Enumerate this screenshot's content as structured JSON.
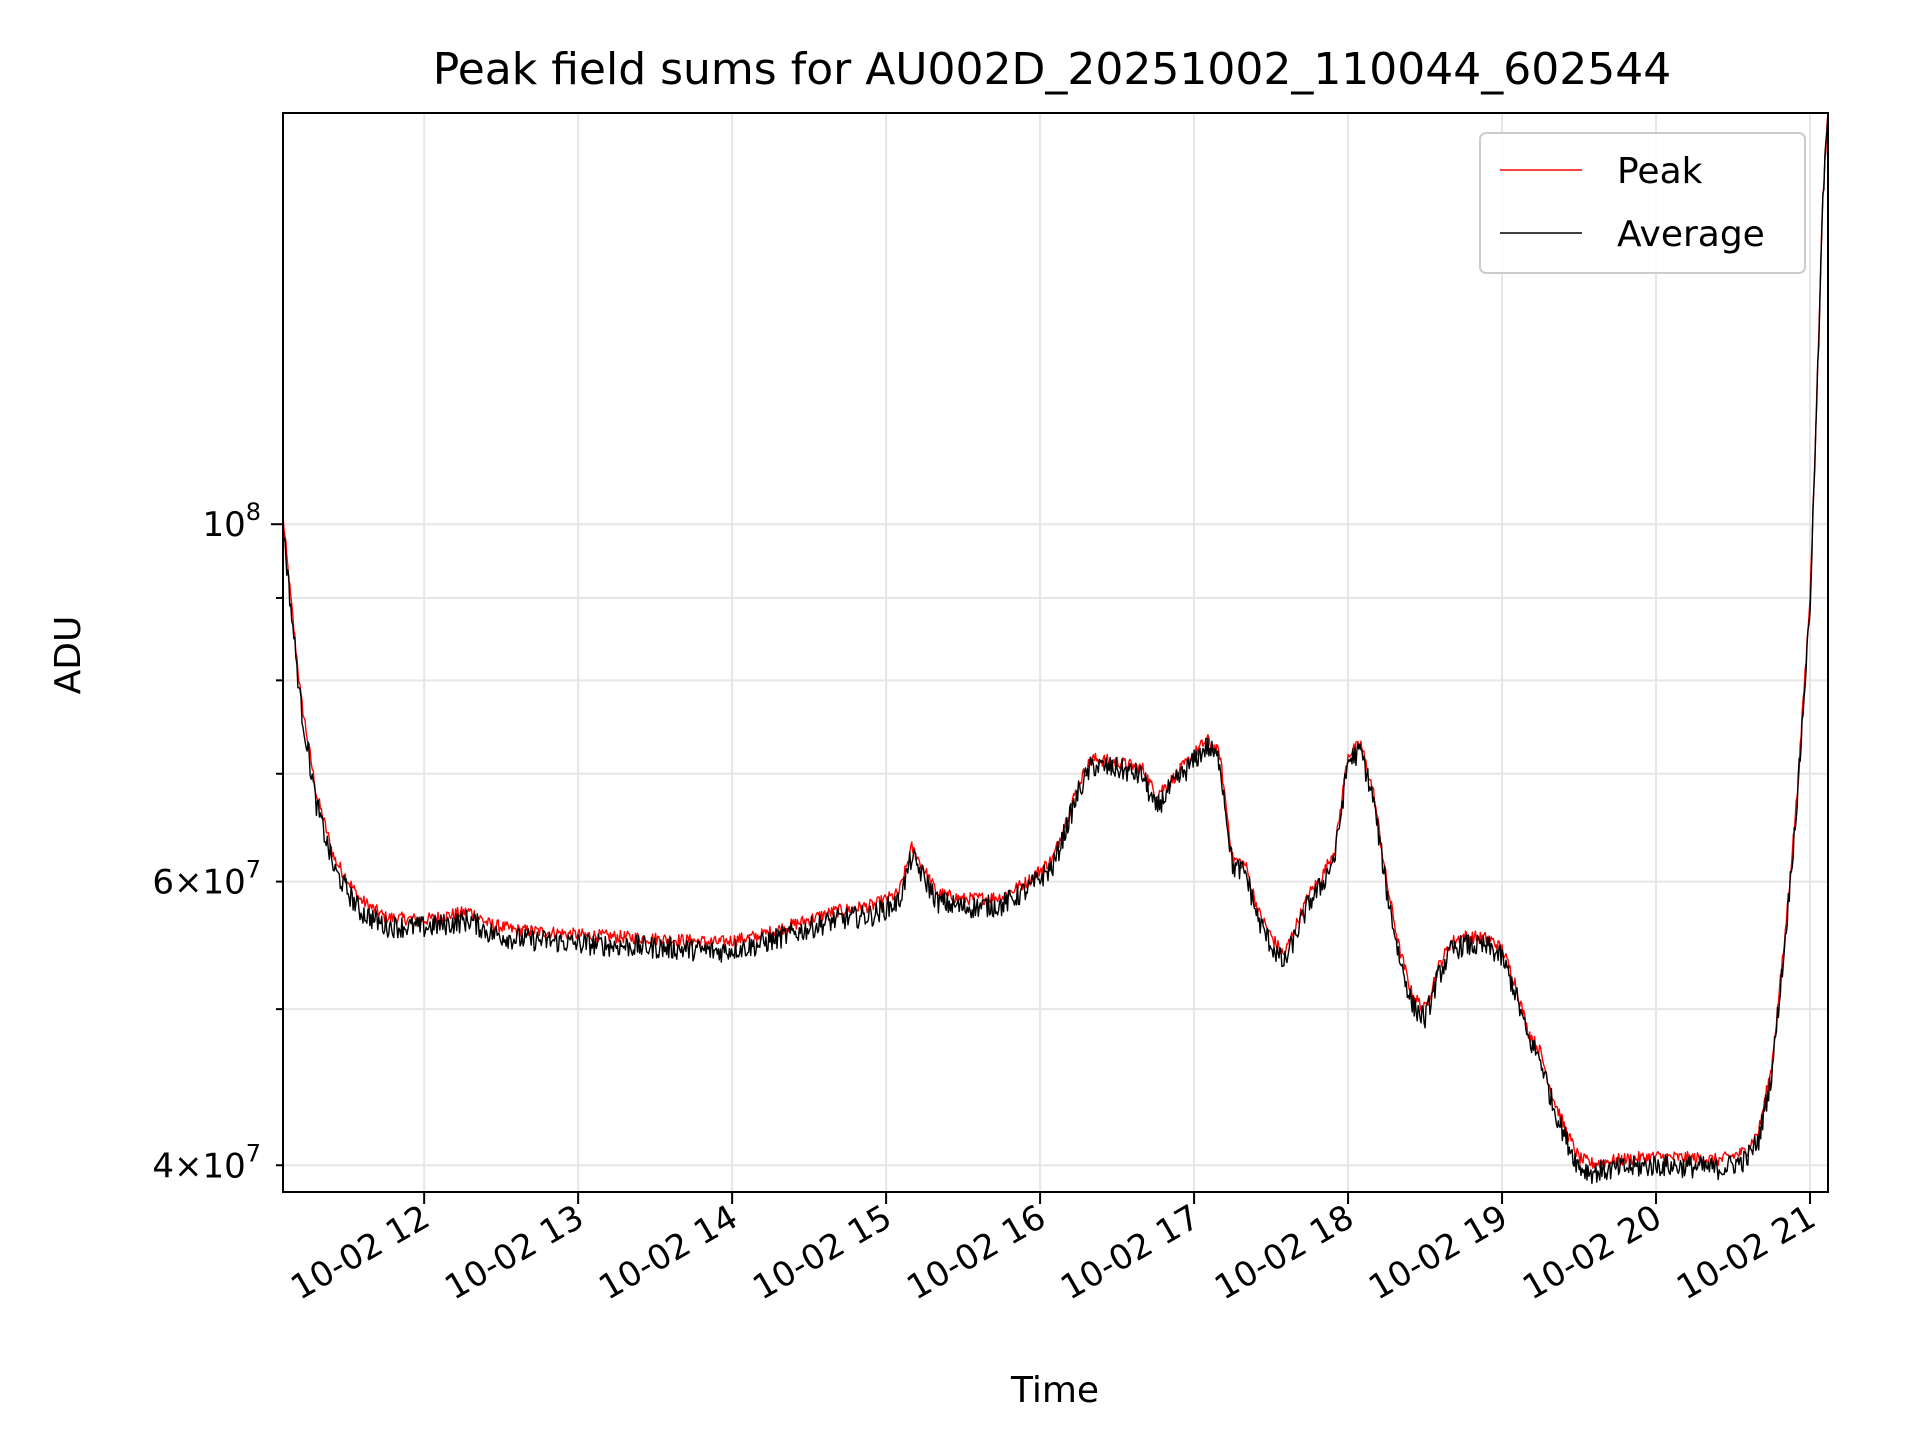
{
  "chart_data": {
    "type": "line",
    "title": "Peak field sums for AU002D_20251002_110044_602544",
    "xlabel": "Time",
    "ylabel": "ADU",
    "x_axis": {
      "kind": "time",
      "range": [
        "10-02 11:05",
        "10-02 21:07"
      ],
      "ticks": [
        "10-02 12",
        "10-02 13",
        "10-02 14",
        "10-02 15",
        "10-02 16",
        "10-02 17",
        "10-02 18",
        "10-02 19",
        "10-02 20",
        "10-02 21"
      ]
    },
    "y_axis": {
      "scale": "log",
      "range": [
        38500000,
        180000000
      ],
      "major_ticks": [
        {
          "value": 100000000,
          "base": "10",
          "exp": "8"
        }
      ],
      "minor_ticks": [
        {
          "value": 40000000,
          "mant": "4",
          "base": "10",
          "exp": "7"
        },
        {
          "value": 50000000,
          "mant": "",
          "base": "",
          "exp": ""
        },
        {
          "value": 60000000,
          "mant": "6",
          "base": "10",
          "exp": "7"
        },
        {
          "value": 70000000,
          "mant": "",
          "base": "",
          "exp": ""
        },
        {
          "value": 80000000,
          "mant": "",
          "base": "",
          "exp": ""
        },
        {
          "value": 90000000,
          "mant": "",
          "base": "",
          "exp": ""
        }
      ]
    },
    "grid": true,
    "legend_position": "top-right",
    "series": [
      {
        "name": "Peak",
        "color": "#ff0000",
        "x": [
          "10-02 11:05",
          "10-02 11:08",
          "10-02 11:12",
          "10-02 11:18",
          "10-02 11:25",
          "10-02 11:35",
          "10-02 11:45",
          "10-02 12:00",
          "10-02 12:10",
          "10-02 12:18",
          "10-02 12:25",
          "10-02 12:35",
          "10-02 12:50",
          "10-02 13:00",
          "10-02 13:20",
          "10-02 13:40",
          "10-02 13:55",
          "10-02 14:10",
          "10-02 14:25",
          "10-02 14:40",
          "10-02 14:55",
          "10-02 15:05",
          "10-02 15:10",
          "10-02 15:20",
          "10-02 15:30",
          "10-02 15:45",
          "10-02 15:55",
          "10-02 16:05",
          "10-02 16:15",
          "10-02 16:20",
          "10-02 16:30",
          "10-02 16:40",
          "10-02 16:45",
          "10-02 16:50",
          "10-02 16:55",
          "10-02 17:00",
          "10-02 17:05",
          "10-02 17:10",
          "10-02 17:15",
          "10-02 17:20",
          "10-02 17:25",
          "10-02 17:30",
          "10-02 17:35",
          "10-02 17:40",
          "10-02 17:45",
          "10-02 17:50",
          "10-02 17:55",
          "10-02 18:00",
          "10-02 18:05",
          "10-02 18:10",
          "10-02 18:15",
          "10-02 18:20",
          "10-02 18:25",
          "10-02 18:30",
          "10-02 18:35",
          "10-02 18:40",
          "10-02 18:45",
          "10-02 18:55",
          "10-02 19:00",
          "10-02 19:05",
          "10-02 19:10",
          "10-02 19:15",
          "10-02 19:20",
          "10-02 19:25",
          "10-02 19:30",
          "10-02 19:35",
          "10-02 19:45",
          "10-02 20:00",
          "10-02 20:15",
          "10-02 20:25",
          "10-02 20:35",
          "10-02 20:40",
          "10-02 20:45",
          "10-02 20:50",
          "10-02 20:55",
          "10-02 21:00",
          "10-02 21:03",
          "10-02 21:05",
          "10-02 21:07"
        ],
        "values": [
          101000000,
          90000000,
          78000000,
          68000000,
          62000000,
          58500000,
          57000000,
          56800000,
          57200000,
          57500000,
          56500000,
          56000000,
          55800000,
          55600000,
          55400000,
          55200000,
          55000000,
          55500000,
          56500000,
          57500000,
          58000000,
          59000000,
          63000000,
          59000000,
          58500000,
          58700000,
          60000000,
          62000000,
          69000000,
          71500000,
          71200000,
          70500000,
          68000000,
          69000000,
          70500000,
          72000000,
          73500000,
          72000000,
          62000000,
          61500000,
          57500000,
          55500000,
          54000000,
          56500000,
          59000000,
          60500000,
          63000000,
          72000000,
          73000000,
          68000000,
          60000000,
          54500000,
          51000000,
          50000000,
          53000000,
          55000000,
          55500000,
          55300000,
          54500000,
          52000000,
          48500000,
          47000000,
          44000000,
          42000000,
          40400000,
          40100000,
          40300000,
          40500000,
          40400000,
          40300000,
          40800000,
          42000000,
          46000000,
          55000000,
          68000000,
          90000000,
          125000000,
          160000000,
          180000000
        ]
      },
      {
        "name": "Average",
        "color": "#000000",
        "x": [
          "10-02 11:05",
          "10-02 11:08",
          "10-02 11:12",
          "10-02 11:18",
          "10-02 11:25",
          "10-02 11:35",
          "10-02 11:45",
          "10-02 12:00",
          "10-02 12:10",
          "10-02 12:18",
          "10-02 12:25",
          "10-02 12:35",
          "10-02 12:50",
          "10-02 13:00",
          "10-02 13:20",
          "10-02 13:40",
          "10-02 13:55",
          "10-02 14:10",
          "10-02 14:25",
          "10-02 14:40",
          "10-02 14:55",
          "10-02 15:05",
          "10-02 15:10",
          "10-02 15:20",
          "10-02 15:30",
          "10-02 15:45",
          "10-02 15:55",
          "10-02 16:05",
          "10-02 16:15",
          "10-02 16:20",
          "10-02 16:30",
          "10-02 16:40",
          "10-02 16:45",
          "10-02 16:50",
          "10-02 16:55",
          "10-02 17:00",
          "10-02 17:05",
          "10-02 17:10",
          "10-02 17:15",
          "10-02 17:20",
          "10-02 17:25",
          "10-02 17:30",
          "10-02 17:35",
          "10-02 17:40",
          "10-02 17:45",
          "10-02 17:50",
          "10-02 17:55",
          "10-02 18:00",
          "10-02 18:05",
          "10-02 18:10",
          "10-02 18:15",
          "10-02 18:20",
          "10-02 18:25",
          "10-02 18:30",
          "10-02 18:35",
          "10-02 18:40",
          "10-02 18:45",
          "10-02 18:55",
          "10-02 19:00",
          "10-02 19:05",
          "10-02 19:10",
          "10-02 19:15",
          "10-02 19:20",
          "10-02 19:25",
          "10-02 19:30",
          "10-02 19:35",
          "10-02 19:45",
          "10-02 20:00",
          "10-02 20:15",
          "10-02 20:25",
          "10-02 20:35",
          "10-02 20:40",
          "10-02 20:45",
          "10-02 20:50",
          "10-02 20:55",
          "10-02 21:00",
          "10-02 21:03",
          "10-02 21:05",
          "10-02 21:07"
        ],
        "values": [
          100000000,
          89000000,
          77000000,
          67000000,
          61000000,
          57500000,
          56300000,
          56200000,
          56500000,
          56800000,
          55800000,
          55300000,
          55100000,
          54900000,
          54700000,
          54500000,
          54300000,
          54800000,
          55800000,
          56800000,
          57200000,
          58300000,
          62200000,
          58300000,
          57800000,
          58000000,
          59300000,
          61300000,
          68200000,
          70800000,
          70500000,
          69800000,
          66500000,
          68300000,
          69800000,
          71300000,
          72800000,
          71300000,
          61300000,
          60800000,
          56800000,
          54800000,
          53300000,
          55800000,
          58300000,
          59800000,
          62300000,
          71300000,
          72300000,
          67300000,
          59300000,
          53800000,
          50300000,
          49300000,
          52300000,
          54300000,
          54800000,
          54600000,
          53800000,
          51300000,
          48000000,
          46500000,
          43500000,
          41500000,
          39900000,
          39600000,
          39800000,
          40000000,
          39900000,
          39800000,
          40300000,
          41500000,
          45500000,
          54500000,
          67500000,
          89000000,
          124000000,
          159000000,
          180000000
        ]
      }
    ]
  }
}
